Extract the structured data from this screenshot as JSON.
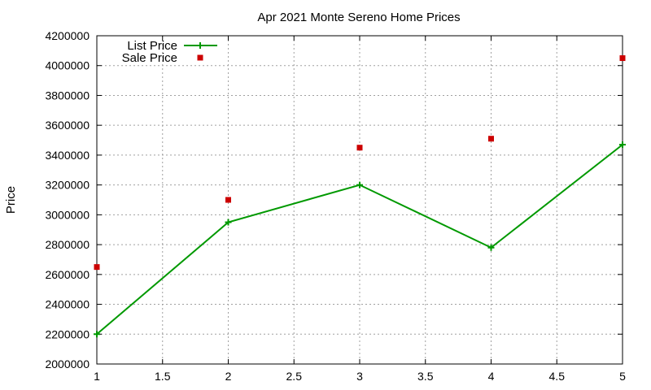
{
  "chart_data": {
    "type": "line",
    "title": "Apr 2021 Monte Sereno Home Prices",
    "xlabel": "",
    "ylabel": "Price",
    "xlim": [
      1,
      5
    ],
    "ylim": [
      2000000,
      4200000
    ],
    "x_ticks": [
      "1",
      "1.5",
      "2",
      "2.5",
      "3",
      "3.5",
      "4",
      "4.5",
      "5"
    ],
    "y_ticks": [
      "2000000",
      "2200000",
      "2400000",
      "2600000",
      "2800000",
      "3000000",
      "3200000",
      "3400000",
      "3600000",
      "3800000",
      "4000000",
      "4200000"
    ],
    "grid": true,
    "legend_position": "top-left",
    "series": [
      {
        "name": "List Price",
        "style": "line-with-plus-markers",
        "color": "#009900",
        "x": [
          1,
          2,
          3,
          4,
          5
        ],
        "y": [
          2200000,
          2950000,
          3200000,
          2780000,
          3470000
        ]
      },
      {
        "name": "Sale Price",
        "style": "square-markers",
        "color": "#cc0000",
        "x": [
          1,
          2,
          3,
          4,
          5
        ],
        "y": [
          2650000,
          3100000,
          3450000,
          3510000,
          4050000
        ]
      }
    ]
  }
}
